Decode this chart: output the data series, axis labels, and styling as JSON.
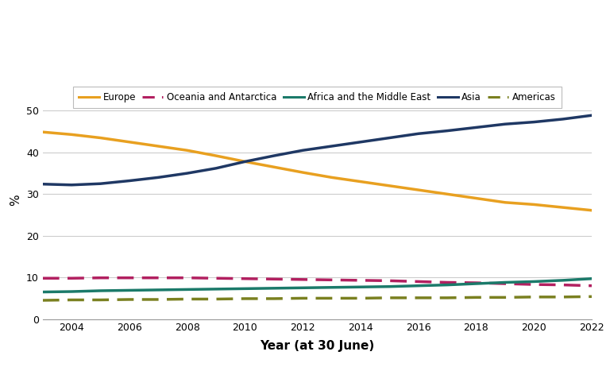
{
  "years": [
    2003,
    2004,
    2005,
    2006,
    2007,
    2008,
    2009,
    2010,
    2011,
    2012,
    2013,
    2014,
    2015,
    2016,
    2017,
    2018,
    2019,
    2020,
    2021,
    2022
  ],
  "Europe": [
    44.9,
    44.3,
    43.5,
    42.5,
    41.5,
    40.5,
    39.2,
    37.8,
    36.5,
    35.2,
    34.0,
    33.0,
    32.0,
    31.0,
    30.0,
    29.0,
    28.0,
    27.5,
    26.8,
    26.1
  ],
  "Asia": [
    32.4,
    32.2,
    32.5,
    33.2,
    34.0,
    35.0,
    36.2,
    37.8,
    39.2,
    40.5,
    41.5,
    42.5,
    43.5,
    44.5,
    45.2,
    46.0,
    46.8,
    47.3,
    48.0,
    48.9
  ],
  "Oceania_Antarctica": [
    9.8,
    9.8,
    9.9,
    9.9,
    9.9,
    9.9,
    9.8,
    9.7,
    9.6,
    9.5,
    9.4,
    9.3,
    9.2,
    9.0,
    8.8,
    8.7,
    8.5,
    8.3,
    8.2,
    8.0
  ],
  "Africa_Middle_East": [
    6.5,
    6.6,
    6.8,
    6.9,
    7.0,
    7.1,
    7.2,
    7.3,
    7.4,
    7.5,
    7.6,
    7.7,
    7.8,
    8.0,
    8.2,
    8.5,
    8.8,
    9.0,
    9.3,
    9.7
  ],
  "Americas": [
    4.5,
    4.6,
    4.6,
    4.7,
    4.7,
    4.8,
    4.8,
    4.9,
    4.9,
    5.0,
    5.0,
    5.0,
    5.1,
    5.1,
    5.1,
    5.2,
    5.2,
    5.3,
    5.3,
    5.4
  ],
  "colors": {
    "Europe": "#E8A020",
    "Asia": "#1F3864",
    "Oceania_Antarctica": "#B22060",
    "Africa_Middle_East": "#1B7A6A",
    "Americas": "#7A8020"
  },
  "linestyles": {
    "Europe": "solid",
    "Asia": "solid",
    "Oceania_Antarctica": "dashed",
    "Africa_Middle_East": "solid",
    "Americas": "dashed"
  },
  "labels": {
    "Europe": "Europe",
    "Oceania_Antarctica": "Oceania and Antarctica",
    "Africa_Middle_East": "Africa and the Middle East",
    "Asia": "Asia",
    "Americas": "Americas"
  },
  "ylabel": "%",
  "xlabel": "Year (at 30 June)",
  "ylim": [
    0,
    57
  ],
  "yticks": [
    0,
    10,
    20,
    30,
    40,
    50
  ],
  "background_color": "#ffffff",
  "grid_color": "#cccccc",
  "linewidth": 2.5,
  "legend_order": [
    "Europe",
    "Oceania_Antarctica",
    "Africa_Middle_East",
    "Asia",
    "Americas"
  ]
}
